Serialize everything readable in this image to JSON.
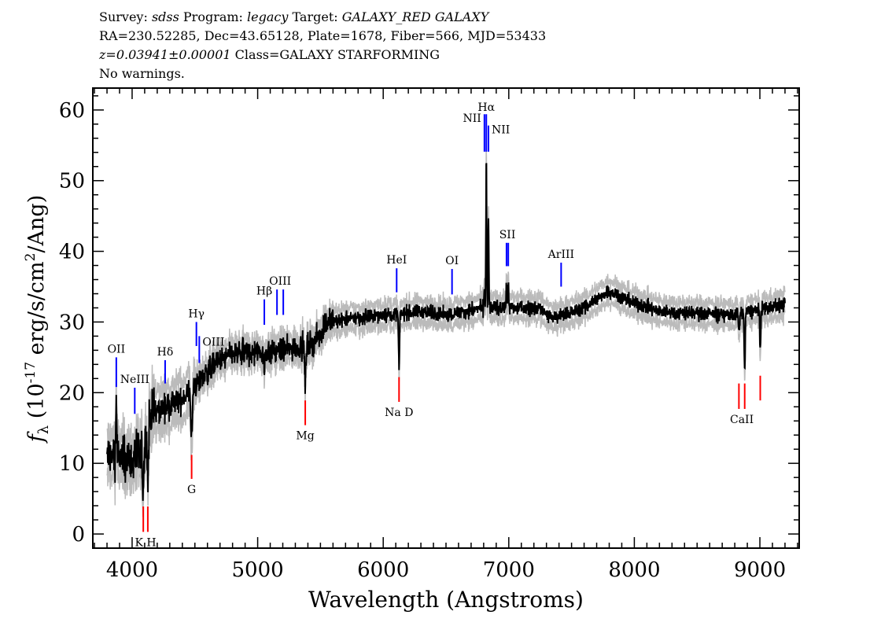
{
  "header": {
    "line1": {
      "survey_label": "Survey: ",
      "survey": "sdss",
      "program_label": " Program: ",
      "program": "legacy",
      "target_label": " Target: ",
      "target": "GALAXY_RED GALAXY"
    },
    "line2": "RA=230.52285, Dec=43.65128, Plate=1678, Fiber=566, MJD=53433",
    "line3": {
      "redshift": "z=0.03941±0.00001",
      "class": " Class=GALAXY STARFORMING"
    },
    "line4": "No warnings."
  },
  "chart_data": {
    "type": "line",
    "xlabel": "Wavelength (Angstroms)",
    "ylabel": {
      "symbol": "f",
      "subscript": "λ",
      "text1": " (10",
      "exp1": "-17",
      "text2": " erg/s/cm",
      "exp2": "2",
      "text3": "/Ang)"
    },
    "xlim": [
      3687,
      9313
    ],
    "ylim": [
      -2,
      63.1
    ],
    "xticks": [
      4000,
      5000,
      6000,
      7000,
      8000,
      9000
    ],
    "yticks": [
      0,
      10,
      20,
      30,
      40,
      50,
      60
    ],
    "grid": false,
    "colors": {
      "spectrum": "#000000",
      "error_band": "#bbbbbb",
      "emission": "#0000ff",
      "absorption": "#ff0000"
    },
    "continuum": [
      [
        3800,
        11
      ],
      [
        3950,
        10.5
      ],
      [
        4080,
        11
      ],
      [
        4150,
        17
      ],
      [
        4400,
        19
      ],
      [
        4500,
        21
      ],
      [
        4650,
        24
      ],
      [
        4800,
        25.5
      ],
      [
        5200,
        26
      ],
      [
        5450,
        27
      ],
      [
        5550,
        30
      ],
      [
        6000,
        31
      ],
      [
        6300,
        31.5
      ],
      [
        6500,
        31
      ],
      [
        6800,
        32
      ],
      [
        7000,
        32
      ],
      [
        7250,
        32
      ],
      [
        7350,
        30.5
      ],
      [
        7600,
        32
      ],
      [
        7800,
        34.5
      ],
      [
        7950,
        33
      ],
      [
        8200,
        31.5
      ],
      [
        8800,
        31
      ],
      [
        9200,
        32.5
      ]
    ],
    "features": [
      [
        3874,
        8,
        4
      ],
      [
        4089,
        -6,
        5
      ],
      [
        4125,
        -7,
        5
      ],
      [
        4474,
        -7,
        6
      ],
      [
        5053,
        -3,
        4
      ],
      [
        5379,
        -5,
        6
      ],
      [
        6126,
        -8,
        4
      ],
      [
        6806,
        3,
        3
      ],
      [
        6821,
        21,
        3
      ],
      [
        6838,
        12,
        3
      ],
      [
        6982,
        4,
        3
      ],
      [
        6996,
        3,
        3
      ],
      [
        8833,
        -3,
        4
      ],
      [
        8879,
        -8,
        4
      ],
      [
        9003,
        -6,
        4
      ]
    ],
    "lines": [
      {
        "label": "OII",
        "wl": [
          3874
        ],
        "y": [
          20.8,
          25
        ],
        "kind": "emission",
        "pos": "above"
      },
      {
        "label": "NeIII",
        "wl": [
          4021
        ],
        "y": [
          17,
          20.7
        ],
        "kind": "emission",
        "pos": "above"
      },
      {
        "label": "Hδ",
        "wl": [
          4263
        ],
        "y": [
          21.3,
          24.6
        ],
        "kind": "emission",
        "pos": "above"
      },
      {
        "label": "Hγ",
        "wl": [
          4512
        ],
        "y": [
          26.6,
          30
        ],
        "kind": "emission",
        "pos": "above"
      },
      {
        "label": "OIII",
        "wl": [
          4535
        ],
        "y": [
          24.2,
          28
        ],
        "kind": "emission",
        "pos": "right"
      },
      {
        "label": "Hβ",
        "wl": [
          5053
        ],
        "y": [
          29.6,
          33.2
        ],
        "kind": "emission",
        "pos": "above"
      },
      {
        "label": "OIII",
        "wl": [
          5154,
          5204
        ],
        "y": [
          31,
          34.6
        ],
        "kind": "emission",
        "pos": "above"
      },
      {
        "label": "HeI",
        "wl": [
          6107
        ],
        "y": [
          34.2,
          37.6
        ],
        "kind": "emission",
        "pos": "above"
      },
      {
        "label": "OI",
        "wl": [
          6548
        ],
        "y": [
          33.9,
          37.5
        ],
        "kind": "emission",
        "pos": "above"
      },
      {
        "label": "NII",
        "wl": [
          6806
        ],
        "y": [
          54.1,
          59.4
        ],
        "kind": "emission",
        "pos": "left"
      },
      {
        "label": "Hα",
        "wl": [
          6821
        ],
        "y": [
          54.1,
          59.4
        ],
        "kind": "emission",
        "pos": "above"
      },
      {
        "label": "NII",
        "wl": [
          6838
        ],
        "y": [
          54.1,
          57.8
        ],
        "kind": "emission",
        "pos": "right"
      },
      {
        "label": "SII",
        "wl": [
          6982,
          6996
        ],
        "y": [
          37.9,
          41.2
        ],
        "kind": "emission",
        "pos": "above"
      },
      {
        "label": "ArIII",
        "wl": [
          7417
        ],
        "y": [
          35,
          38.4
        ],
        "kind": "emission",
        "pos": "above"
      },
      {
        "label": "K H",
        "wl": [
          4089,
          4125
        ],
        "y": [
          0.3,
          3.9
        ],
        "kind": "absorption",
        "pos": "below"
      },
      {
        "label": "G",
        "wl": [
          4474
        ],
        "y": [
          7.8,
          11.2
        ],
        "kind": "absorption",
        "pos": "below"
      },
      {
        "label": "Mg",
        "wl": [
          5379
        ],
        "y": [
          15.4,
          18.9
        ],
        "kind": "absorption",
        "pos": "below"
      },
      {
        "label": "Na D",
        "wl": [
          6126
        ],
        "y": [
          18.7,
          22.2
        ],
        "kind": "absorption",
        "pos": "below"
      },
      {
        "label": "CaII",
        "wl": [
          8833,
          8879
        ],
        "y": [
          17.7,
          21.3
        ],
        "kind": "absorption",
        "pos": "below"
      },
      {
        "label": "",
        "wl": [
          9003
        ],
        "y": [
          18.9,
          22.4
        ],
        "kind": "absorption",
        "pos": "below"
      }
    ]
  }
}
